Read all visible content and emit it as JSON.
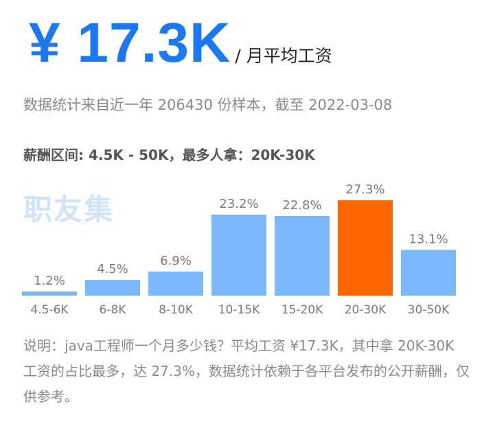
{
  "header": {
    "salary": "¥ 17.3K",
    "unit": "/ 月平均工资"
  },
  "subtitle": "数据统计来自近一年 206430 份样本，截至 2022-03-08",
  "range_text": "薪酬区间: 4.5K - 50K，最多人拿：20K-30K",
  "watermark": "职友集",
  "description": "说明：java工程师一个月多少钱？平均工资 ¥17.3K，其中拿 20K-30K 工资的占比最多，达 27.3%，数据统计依赖于各平台发布的公开薪酬，仅供参考。",
  "colors": {
    "accent": "#1a78f2",
    "bar": "#7ab8fb",
    "highlight": "#ff6600"
  },
  "chart_data": {
    "type": "bar",
    "categories": [
      "4.5-6K",
      "6-8K",
      "8-10K",
      "10-15K",
      "15-20K",
      "20-30K",
      "30-50K"
    ],
    "values": [
      1.2,
      4.5,
      6.9,
      23.2,
      22.8,
      27.3,
      13.1
    ],
    "value_labels": [
      "1.2%",
      "4.5%",
      "6.9%",
      "23.2%",
      "22.8%",
      "27.3%",
      "13.1%"
    ],
    "highlight_index": 5,
    "ylim": [
      0,
      27.3
    ],
    "grid": false,
    "xlabel": "",
    "ylabel": ""
  }
}
